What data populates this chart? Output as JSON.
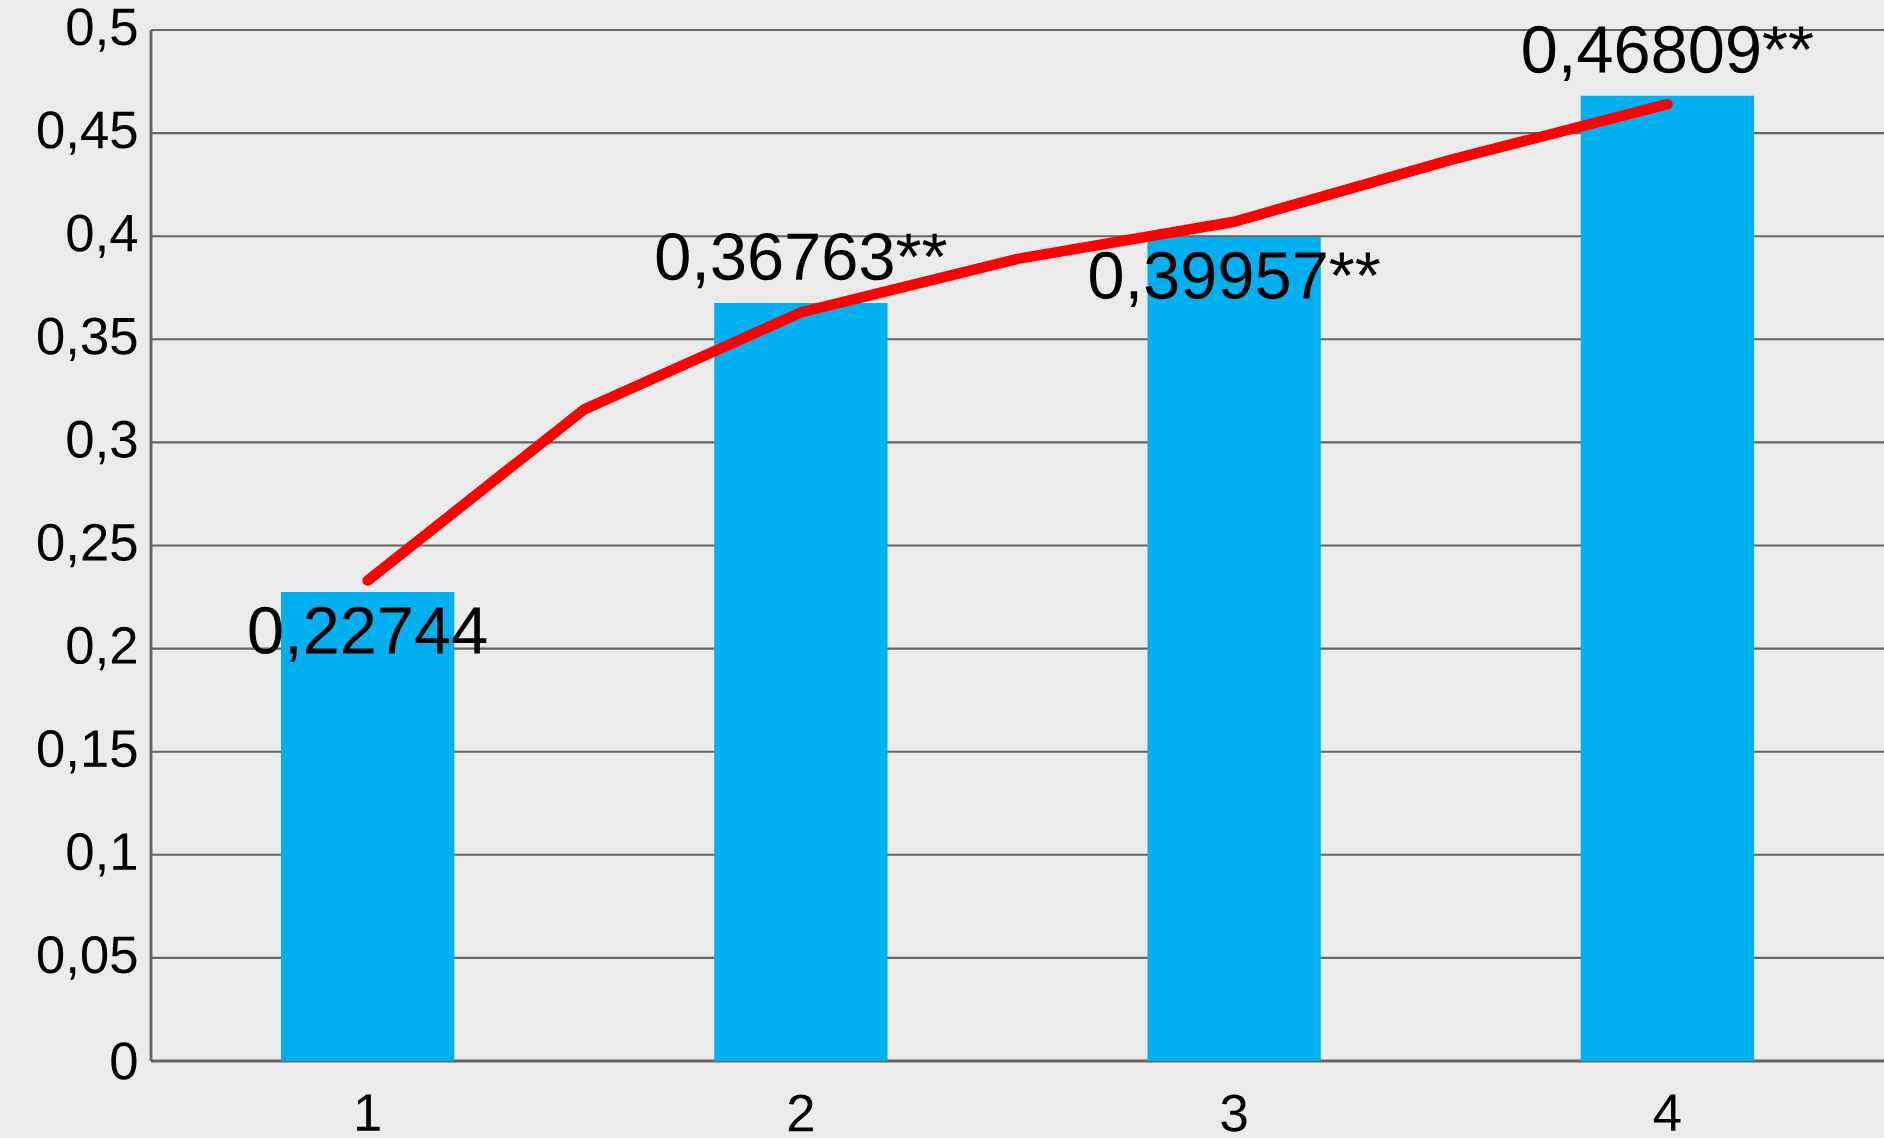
{
  "chart_data": {
    "type": "bar",
    "x": [
      1,
      2,
      3,
      4
    ],
    "xlim": [
      0.5,
      4.5
    ],
    "xticks": [
      1,
      2,
      3,
      4
    ],
    "ylim": [
      0,
      0.5
    ],
    "yticks": [
      0,
      {
        "value": 0.05,
        "label": "0,05"
      },
      {
        "value": 0.1,
        "label": "0,1"
      },
      {
        "value": 0.15,
        "label": "0,15"
      },
      {
        "value": 0.2,
        "label": "0,2"
      },
      {
        "value": 0.25,
        "label": "0,25"
      },
      {
        "value": 0.3,
        "label": "0,3"
      },
      {
        "value": 0.35,
        "label": "0,35"
      },
      {
        "value": 0.4,
        "label": "0,4"
      },
      {
        "value": 0.45,
        "label": "0,45"
      },
      {
        "value": 0.5,
        "label": "0,5"
      }
    ],
    "grid": "y",
    "series": [
      {
        "color": "#00b0f0",
        "values": [
          0.22744,
          0.36763,
          0.39957,
          0.46809
        ],
        "value_labels": [
          "0,22744",
          "0,36763**",
          "0,39957**",
          "0,46809**"
        ]
      },
      {
        "type": "line",
        "color": "#ff0000",
        "x": [
          1,
          1.5,
          2,
          2.5,
          3,
          3.5,
          4
        ],
        "values": [
          0.233,
          0.316,
          0.363,
          0.389,
          0.407,
          0.437,
          0.464
        ]
      }
    ]
  }
}
